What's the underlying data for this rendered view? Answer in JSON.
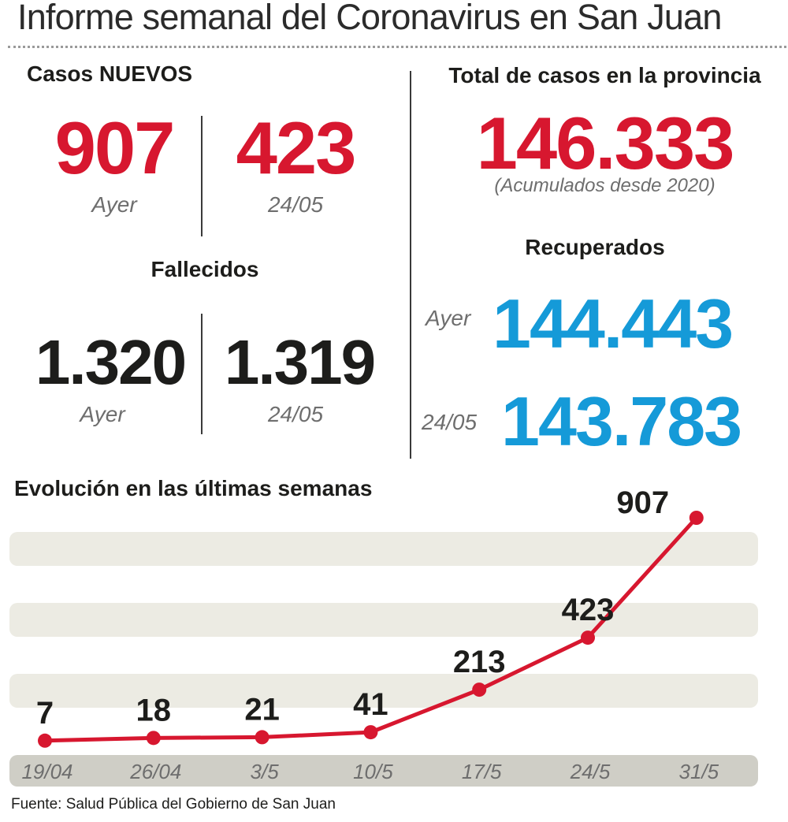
{
  "title": "Informe semanal del Coronavirus en San Juan",
  "casos_nuevos": {
    "heading": "Casos NUEVOS",
    "ayer": {
      "value": "907",
      "label": "Ayer"
    },
    "previo": {
      "value": "423",
      "label": "24/05"
    }
  },
  "fallecidos": {
    "heading": "Fallecidos",
    "ayer": {
      "value": "1.320",
      "label": "Ayer"
    },
    "previo": {
      "value": "1.319",
      "label": "24/05"
    }
  },
  "total": {
    "heading": "Total de casos en la provincia",
    "value": "146.333",
    "note": "(Acumulados desde 2020)"
  },
  "recuperados": {
    "heading": "Recuperados",
    "ayer": {
      "label": "Ayer",
      "value": "144.443"
    },
    "previo": {
      "label": "24/05",
      "value": "143.783"
    }
  },
  "colors": {
    "red": "#d7172f",
    "blue": "#159ad8",
    "band": "#ecebe3",
    "axis_band": "#cfcec6"
  },
  "chart_data": {
    "type": "line",
    "title": "Evolución en las últimas semanas",
    "categories": [
      "19/04",
      "26/04",
      "3/5",
      "10/5",
      "17/5",
      "24/5",
      "31/5"
    ],
    "values": [
      7,
      18,
      21,
      41,
      213,
      423,
      907
    ],
    "data_labels": [
      "7",
      "18",
      "21",
      "41",
      "213",
      "423",
      "907"
    ],
    "ylim": [
      0,
      1000
    ],
    "grid": "horizontal bands",
    "line_color": "#d7172f"
  },
  "source": "Fuente: Salud Pública del Gobierno de San Juan"
}
